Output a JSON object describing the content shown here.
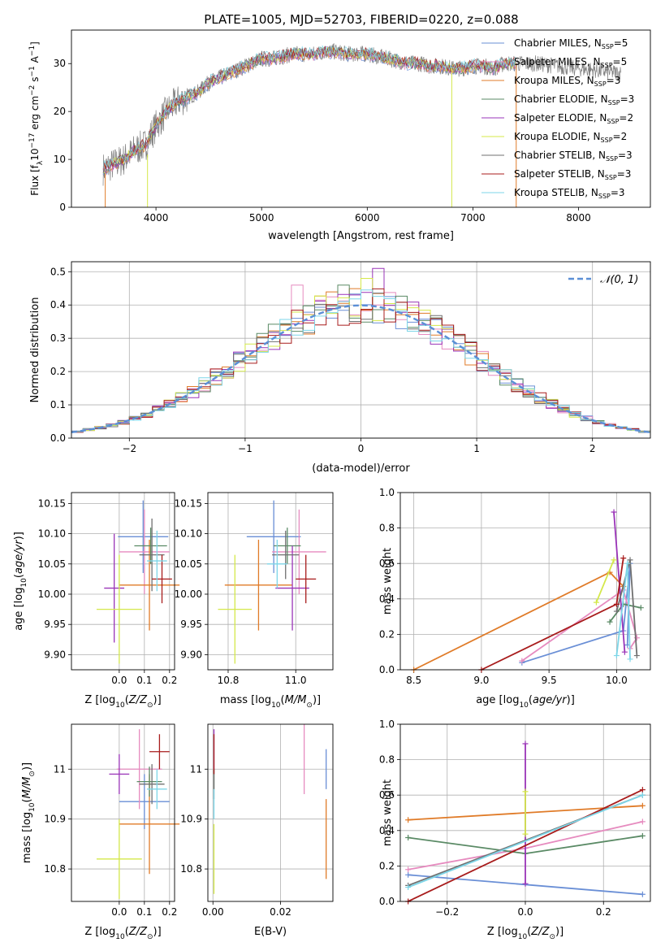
{
  "figure_title": "PLATE=1005, MJD=52703, FIBERID=0220, z=0.088",
  "colors": {
    "Chabrier MILES": "#6a8fd6",
    "Salpeter MILES": "#e68bbf",
    "Kroupa MILES": "#e07b28",
    "Chabrier ELODIE": "#5a8a65",
    "Salpeter ELODIE": "#9a34b8",
    "Kroupa ELODIE": "#d4e84a",
    "Chabrier STELIB": "#707070",
    "Salpeter STELIB": "#a81c1c",
    "Kroupa STELIB": "#7dd6e8",
    "normal_line": "#5b8fd6",
    "grid": "#b0b0b0"
  },
  "chart_data": [
    {
      "id": "spectrum",
      "type": "line",
      "title": "PLATE=1005, MJD=52703, FIBERID=0220, z=0.088",
      "xlabel": "wavelength [Angstrom, rest frame]",
      "ylabel_main": "Flux [f",
      "ylabel_sub1": "λ",
      "ylabel_mid": "10",
      "ylabel_sup1": "−17",
      "ylabel_mid2": " erg cm",
      "ylabel_sup2": "−2",
      "ylabel_mid3": " s",
      "ylabel_sup3": "−1",
      "ylabel_mid4": " A",
      "ylabel_sup4": "−1",
      "ylabel_end": "]",
      "xlim": [
        3200,
        8680
      ],
      "ylim": [
        0,
        37
      ],
      "xticks": [
        4000,
        5000,
        6000,
        7000,
        8000
      ],
      "yticks": [
        0,
        10,
        20,
        30
      ],
      "grid": false,
      "legend_position": "top-right",
      "series": [
        {
          "name": "Chabrier MILES",
          "nssp": "5"
        },
        {
          "name": "Salpeter MILES",
          "nssp": "5"
        },
        {
          "name": "Kroupa MILES",
          "nssp": "3"
        },
        {
          "name": "Chabrier ELODIE",
          "nssp": "3"
        },
        {
          "name": "Salpeter ELODIE",
          "nssp": "2"
        },
        {
          "name": "Kroupa ELODIE",
          "nssp": "2"
        },
        {
          "name": "Chabrier STELIB",
          "nssp": "3"
        },
        {
          "name": "Salpeter STELIB",
          "nssp": "3"
        },
        {
          "name": "Kroupa STELIB",
          "nssp": "3"
        }
      ],
      "nssp_label": "N",
      "nssp_sub": "SSP",
      "observed_envelope": {
        "x": [
          3500,
          3600,
          3700,
          3800,
          3900,
          4000,
          4100,
          4200,
          4300,
          4400,
          4500,
          4600,
          4700,
          4800,
          4900,
          5000,
          5100,
          5200,
          5300,
          5400,
          5500,
          5600,
          5700,
          5800,
          5900,
          6000,
          6100,
          6200,
          6300,
          6400,
          6500,
          6600,
          6700,
          6800,
          6900,
          7000,
          7100,
          7200,
          7300,
          7400,
          7600,
          7800,
          8000,
          8200,
          8400
        ],
        "y": [
          8,
          9,
          10,
          12,
          13,
          17,
          20,
          22,
          23,
          24,
          26,
          27,
          28,
          29,
          30,
          31,
          31,
          31.5,
          32,
          32,
          32,
          32.5,
          32.5,
          32,
          32,
          32,
          31.5,
          31,
          30.5,
          30,
          30,
          29.5,
          29.5,
          29,
          29,
          29.5,
          29.5,
          29,
          30,
          30,
          30,
          29.5,
          29,
          28.5,
          28
        ]
      },
      "model_range": [
        3500,
        7400
      ]
    },
    {
      "id": "residuals",
      "type": "histogram",
      "xlabel": "(data-model)/error",
      "ylabel": "Normed distribution",
      "xlim": [
        -2.5,
        2.5
      ],
      "ylim": [
        0,
        0.53
      ],
      "xticks": [
        -2,
        -1,
        0,
        1,
        2
      ],
      "yticks": [
        0.0,
        0.1,
        0.2,
        0.3,
        0.4,
        0.5
      ],
      "grid": true,
      "legend_position": "top-right",
      "normal_label": "N(0,1)",
      "bin_width": 0.1,
      "notable_bins": [
        {
          "series": "Salpeter ELODIE",
          "x": 0.1,
          "y": 0.51
        },
        {
          "series": "Kroupa ELODIE",
          "x": 0.0,
          "y": 0.48
        },
        {
          "series": "Chabrier ELODIE",
          "x": -0.2,
          "y": 0.46
        },
        {
          "series": "Salpeter MILES",
          "x": -0.6,
          "y": 0.46
        }
      ]
    },
    {
      "id": "age_vs_Z",
      "type": "scatter",
      "xlabel": "Z [log10(Z/Z⊙)]",
      "ylabel": "age [log10(age/yr)]",
      "xlim": [
        -0.19,
        0.22
      ],
      "ylim": [
        9.875,
        10.168
      ],
      "xticks": [
        0.0,
        0.1,
        0.2
      ],
      "yticks": [
        9.9,
        9.95,
        10.0,
        10.05,
        10.1,
        10.15
      ],
      "grid": true,
      "points": [
        {
          "series": "Chabrier MILES",
          "x": 0.095,
          "y": 10.095,
          "xerr": 0.1,
          "yerr": 0.06
        },
        {
          "series": "Salpeter MILES",
          "x": 0.1,
          "y": 10.07,
          "xerr": 0.1,
          "yerr": 0.07
        },
        {
          "series": "Kroupa MILES",
          "x": 0.12,
          "y": 10.015,
          "xerr": 0.12,
          "yerr": 0.075
        },
        {
          "series": "Chabrier ELODIE",
          "x": 0.125,
          "y": 10.08,
          "xerr": 0.065,
          "yerr": 0.03
        },
        {
          "series": "Salpeter ELODIE",
          "x": -0.02,
          "y": 10.01,
          "xerr": 0.04,
          "yerr": 0.09
        },
        {
          "series": "Kroupa ELODIE",
          "x": 0.0,
          "y": 9.975,
          "xerr": 0.09,
          "yerr": 0.09
        },
        {
          "series": "Chabrier STELIB",
          "x": 0.13,
          "y": 10.065,
          "xerr": 0.05,
          "yerr": 0.06
        },
        {
          "series": "Salpeter STELIB",
          "x": 0.17,
          "y": 10.025,
          "xerr": 0.04,
          "yerr": 0.04
        },
        {
          "series": "Kroupa STELIB",
          "x": 0.15,
          "y": 10.055,
          "xerr": 0.04,
          "yerr": 0.05
        }
      ]
    },
    {
      "id": "age_vs_mass",
      "type": "scatter",
      "xlabel": "mass [log10(M/M⊙)]",
      "ylabel": "",
      "xlim": [
        10.74,
        11.11
      ],
      "ylim": [
        9.875,
        10.168
      ],
      "xticks": [
        10.8,
        11.0
      ],
      "yticks": [
        9.9,
        9.95,
        10.0,
        10.05,
        10.1,
        10.15
      ],
      "grid": true,
      "points": [
        {
          "series": "Chabrier MILES",
          "x": 10.935,
          "y": 10.095,
          "xerr": 0.08,
          "yerr": 0.06
        },
        {
          "series": "Salpeter MILES",
          "x": 11.01,
          "y": 10.07,
          "xerr": 0.08,
          "yerr": 0.07
        },
        {
          "series": "Kroupa MILES",
          "x": 10.89,
          "y": 10.015,
          "xerr": 0.1,
          "yerr": 0.075
        },
        {
          "series": "Chabrier ELODIE",
          "x": 10.975,
          "y": 10.08,
          "xerr": 0.04,
          "yerr": 0.03
        },
        {
          "series": "Salpeter ELODIE",
          "x": 10.99,
          "y": 10.01,
          "xerr": 0.05,
          "yerr": 0.07
        },
        {
          "series": "Kroupa ELODIE",
          "x": 10.82,
          "y": 9.975,
          "xerr": 0.05,
          "yerr": 0.09
        },
        {
          "series": "Chabrier STELIB",
          "x": 10.97,
          "y": 10.065,
          "xerr": 0.04,
          "yerr": 0.04
        },
        {
          "series": "Salpeter STELIB",
          "x": 11.03,
          "y": 10.025,
          "xerr": 0.03,
          "yerr": 0.04
        },
        {
          "series": "Kroupa STELIB",
          "x": 10.945,
          "y": 10.05,
          "xerr": 0.03,
          "yerr": 0.04
        }
      ]
    },
    {
      "id": "weight_vs_age",
      "type": "line",
      "xlabel": "age [log10(age/yr)]",
      "ylabel": "mass weight",
      "xlim": [
        8.4,
        10.25
      ],
      "ylim": [
        0,
        1.0
      ],
      "xticks": [
        8.5,
        9.0,
        9.5,
        10.0
      ],
      "yticks": [
        0.0,
        0.2,
        0.4,
        0.6,
        0.8,
        1.0
      ],
      "grid": true,
      "series": [
        {
          "name": "Chabrier MILES",
          "x": [
            9.3,
            10.05,
            10.1,
            10.08
          ],
          "y": [
            0.04,
            0.22,
            0.6,
            0.14
          ]
        },
        {
          "name": "Salpeter MILES",
          "x": [
            9.3,
            10.05,
            10.15,
            10.1
          ],
          "y": [
            0.05,
            0.45,
            0.18,
            0.12
          ]
        },
        {
          "name": "Kroupa MILES",
          "x": [
            8.5,
            9.95,
            10.05
          ],
          "y": [
            0.0,
            0.55,
            0.47
          ]
        },
        {
          "name": "Chabrier ELODIE",
          "x": [
            9.95,
            10.05,
            10.18
          ],
          "y": [
            0.27,
            0.37,
            0.35
          ]
        },
        {
          "name": "Salpeter ELODIE",
          "x": [
            9.98,
            10.06
          ],
          "y": [
            0.89,
            0.1
          ]
        },
        {
          "name": "Kroupa ELODIE",
          "x": [
            9.85,
            9.98
          ],
          "y": [
            0.38,
            0.62
          ]
        },
        {
          "name": "Chabrier STELIB",
          "x": [
            10.0,
            10.1,
            10.15
          ],
          "y": [
            0.33,
            0.62,
            0.08
          ]
        },
        {
          "name": "Salpeter STELIB",
          "x": [
            9.0,
            10.0,
            10.05
          ],
          "y": [
            0.0,
            0.37,
            0.63
          ]
        },
        {
          "name": "Kroupa STELIB",
          "x": [
            10.0,
            10.08,
            10.1
          ],
          "y": [
            0.08,
            0.6,
            0.06
          ]
        }
      ]
    },
    {
      "id": "mass_vs_Z",
      "type": "scatter",
      "xlabel": "Z [log10(Z/Z⊙)]",
      "ylabel": "mass [log10(M/M⊙)]",
      "xlim": [
        -0.19,
        0.22
      ],
      "ylim": [
        10.735,
        11.09
      ],
      "xticks": [
        0.0,
        0.1,
        0.2
      ],
      "yticks": [
        10.8,
        10.9,
        11.0
      ],
      "grid": true,
      "points": [
        {
          "series": "Chabrier MILES",
          "x": 0.1,
          "y": 10.935,
          "xerr": 0.1,
          "yerr": 0.055
        },
        {
          "series": "Salpeter MILES",
          "x": 0.08,
          "y": 11.0,
          "xerr": 0.09,
          "yerr": 0.08
        },
        {
          "series": "Kroupa MILES",
          "x": 0.12,
          "y": 10.89,
          "xerr": 0.12,
          "yerr": 0.1
        },
        {
          "series": "Chabrier ELODIE",
          "x": 0.12,
          "y": 10.975,
          "xerr": 0.05,
          "yerr": 0.03
        },
        {
          "series": "Salpeter ELODIE",
          "x": 0.0,
          "y": 10.99,
          "xerr": 0.04,
          "yerr": 0.04
        },
        {
          "series": "Kroupa ELODIE",
          "x": 0.0,
          "y": 10.82,
          "xerr": 0.09,
          "yerr": 0.08
        },
        {
          "series": "Chabrier STELIB",
          "x": 0.13,
          "y": 10.97,
          "xerr": 0.05,
          "yerr": 0.04
        },
        {
          "series": "Salpeter STELIB",
          "x": 0.16,
          "y": 11.035,
          "xerr": 0.04,
          "yerr": 0.035
        },
        {
          "series": "Kroupa STELIB",
          "x": 0.15,
          "y": 10.96,
          "xerr": 0.04,
          "yerr": 0.04
        }
      ]
    },
    {
      "id": "mass_vs_ebv",
      "type": "scatter",
      "xlabel": "E(B-V)",
      "ylabel": "",
      "xlim": [
        -0.0015,
        0.0355
      ],
      "ylim": [
        10.735,
        11.09
      ],
      "xticks": [
        0.0,
        0.02
      ],
      "yticks": [
        10.8,
        10.9,
        11.0
      ],
      "grid": true,
      "points": [
        {
          "series": "Chabrier MILES",
          "x": 0.0335,
          "y": 11.0,
          "yerr": 0.04
        },
        {
          "series": "Salpeter MILES",
          "x": 0.027,
          "y": 11.02,
          "yerr": 0.07
        },
        {
          "series": "Kroupa MILES",
          "x": 0.0335,
          "y": 10.86,
          "yerr": 0.08
        },
        {
          "series": "Chabrier ELODIE",
          "x": 0.0003,
          "y": 10.98,
          "yerr": 0.02
        },
        {
          "series": "Salpeter ELODIE",
          "x": 0.0003,
          "y": 11.04,
          "yerr": 0.04
        },
        {
          "series": "Kroupa ELODIE",
          "x": 0.0003,
          "y": 10.82,
          "yerr": 0.07
        },
        {
          "series": "Chabrier STELIB",
          "x": 0.0003,
          "y": 10.97,
          "yerr": 0.03
        },
        {
          "series": "Salpeter STELIB",
          "x": 0.0003,
          "y": 11.03,
          "yerr": 0.04
        },
        {
          "series": "Kroupa STELIB",
          "x": 0.0003,
          "y": 10.93,
          "yerr": 0.03
        }
      ]
    },
    {
      "id": "weight_vs_Z",
      "type": "line",
      "xlabel": "Z [log10(Z/Z⊙)]",
      "ylabel": "mass weight",
      "xlim": [
        -0.32,
        0.32
      ],
      "ylim": [
        0,
        1.0
      ],
      "xticks": [
        -0.2,
        0.0,
        0.2
      ],
      "yticks": [
        0.0,
        0.2,
        0.4,
        0.6,
        0.8,
        1.0
      ],
      "grid": true,
      "series": [
        {
          "name": "Chabrier MILES",
          "x": [
            -0.3,
            0.3
          ],
          "y": [
            0.15,
            0.04
          ]
        },
        {
          "name": "Salpeter MILES",
          "x": [
            -0.3,
            0.0,
            0.3
          ],
          "y": [
            0.18,
            0.3,
            0.45
          ]
        },
        {
          "name": "Kroupa MILES",
          "x": [
            -0.3,
            0.3
          ],
          "y": [
            0.46,
            0.54
          ]
        },
        {
          "name": "Chabrier ELODIE",
          "x": [
            -0.3,
            0.0,
            0.3
          ],
          "y": [
            0.36,
            0.27,
            0.37
          ]
        },
        {
          "name": "Salpeter ELODIE",
          "x": [
            0.0,
            0.0
          ],
          "y": [
            0.89,
            0.1
          ]
        },
        {
          "name": "Kroupa ELODIE",
          "x": [
            0.0,
            0.0
          ],
          "y": [
            0.62,
            0.38
          ]
        },
        {
          "name": "Chabrier STELIB",
          "x": [
            -0.3,
            0.3
          ],
          "y": [
            0.09,
            0.6
          ]
        },
        {
          "name": "Salpeter STELIB",
          "x": [
            -0.3,
            0.3
          ],
          "y": [
            0.0,
            0.63
          ]
        },
        {
          "name": "Kroupa STELIB",
          "x": [
            -0.3,
            0.3
          ],
          "y": [
            0.08,
            0.6
          ]
        }
      ]
    }
  ]
}
